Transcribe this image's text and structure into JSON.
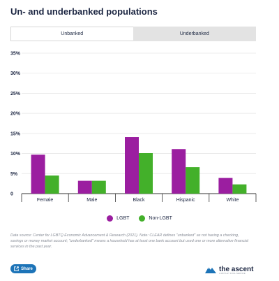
{
  "title": "Un- and underbanked populations",
  "tabs": [
    {
      "label": "Unbanked",
      "active": true
    },
    {
      "label": "Underbanked",
      "active": false
    }
  ],
  "chart_data": {
    "type": "bar",
    "categories": [
      "Female",
      "Male",
      "Black",
      "Hispanic",
      "White"
    ],
    "series": [
      {
        "name": "LGBT",
        "color": "#9b1ea0",
        "values": [
          9.7,
          3.2,
          14.1,
          11.1,
          3.9
        ]
      },
      {
        "name": "Non-LGBT",
        "color": "#43b02a",
        "values": [
          4.5,
          3.2,
          10.1,
          6.6,
          2.3
        ]
      }
    ],
    "ylim": [
      0,
      35
    ],
    "yticks": [
      0,
      5,
      10,
      15,
      20,
      25,
      30,
      35
    ],
    "ytick_labels": [
      "0",
      "5%",
      "10%",
      "15%",
      "20%",
      "25%",
      "30%",
      "35%"
    ],
    "grid": true,
    "legend": "bottom-center"
  },
  "note": "Data source: Center for LGBTQ Economic Advancement & Research (2021). Note: CLEAR defines \"unbanked\" as not having a checking, savings or money market account; \"underbanked\" means a household has at least one bank account but used one or more alternative financial services in the past year.",
  "share_label": "Share",
  "brand": {
    "name": "the ascent",
    "tagline": "A MOTLEY FOOL SERVICE"
  }
}
